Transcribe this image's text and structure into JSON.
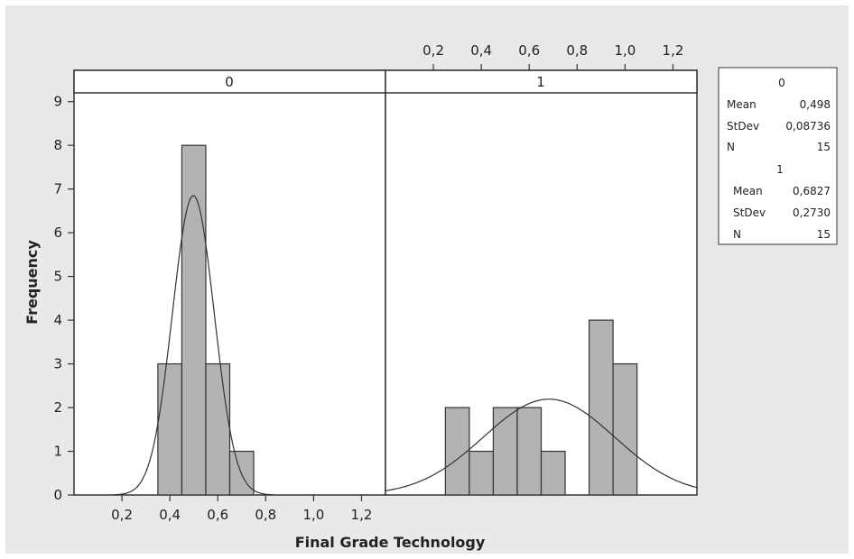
{
  "chart_data": {
    "type": "bar",
    "title": "",
    "xlabel": "Final Grade Technology",
    "ylabel": "Frequency",
    "xlim": [
      0,
      1.3
    ],
    "ylim": [
      0,
      9.2
    ],
    "x_ticks": [
      "0,2",
      "0,4",
      "0,6",
      "0,8",
      "1,0",
      "1,2"
    ],
    "x_tick_values": [
      0.2,
      0.4,
      0.6,
      0.8,
      1.0,
      1.2
    ],
    "y_ticks": [
      "0",
      "1",
      "2",
      "3",
      "4",
      "5",
      "6",
      "7",
      "8",
      "9"
    ],
    "y_tick_values": [
      0,
      1,
      2,
      3,
      4,
      5,
      6,
      7,
      8,
      9
    ],
    "panels": [
      {
        "label": "0",
        "bars": [
          {
            "x": 0.4,
            "value": 3
          },
          {
            "x": 0.5,
            "value": 8
          },
          {
            "x": 0.6,
            "value": 3
          },
          {
            "x": 0.7,
            "value": 1
          }
        ],
        "bin_width": 0.1,
        "normal_fit": {
          "mean": 0.498,
          "stdev": 0.08736,
          "n": 15
        },
        "stats": {
          "header": "0",
          "mean_label": "Mean",
          "mean": "0,498",
          "stdev_label": "StDev",
          "stdev": "0,08736",
          "n_label": "N",
          "n": "15"
        }
      },
      {
        "label": "1",
        "bars": [
          {
            "x": 0.3,
            "value": 2
          },
          {
            "x": 0.4,
            "value": 1
          },
          {
            "x": 0.5,
            "value": 2
          },
          {
            "x": 0.6,
            "value": 2
          },
          {
            "x": 0.7,
            "value": 1
          },
          {
            "x": 0.8,
            "value": 0
          },
          {
            "x": 0.9,
            "value": 4
          },
          {
            "x": 1.0,
            "value": 3
          }
        ],
        "bin_width": 0.1,
        "normal_fit": {
          "mean": 0.6827,
          "stdev": 0.273,
          "n": 15
        },
        "stats": {
          "header": "1",
          "mean_label": "Mean",
          "mean": "0,6827",
          "stdev_label": "StDev",
          "stdev": "0,2730",
          "n_label": "N",
          "n": "15"
        }
      }
    ],
    "legend_position": "right",
    "grid": false,
    "colors": {
      "bar_fill": "#b3b3b3",
      "bar_stroke": "#333333",
      "curve": "#333333",
      "background": "#e9e9e9"
    }
  }
}
